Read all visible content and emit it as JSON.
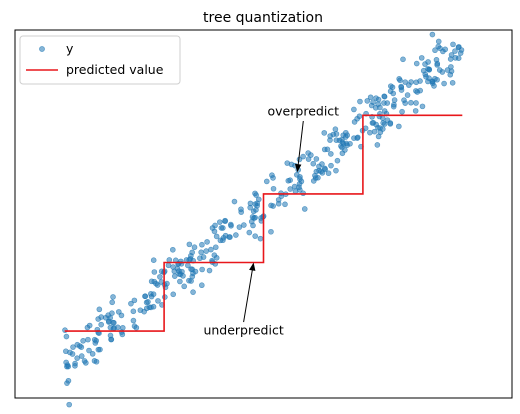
{
  "chart_data": {
    "type": "scatter",
    "title": "tree quantization",
    "xlabel": "",
    "ylabel": "",
    "xlim": [
      -0.25,
      2.25
    ],
    "ylim": [
      -0.2,
      2.0
    ],
    "show_ticks": false,
    "grid": false,
    "legend": {
      "placement": "top-left",
      "entries": [
        "y",
        "predicted value"
      ]
    },
    "colors": {
      "points": "#1f77b4",
      "step": "#e8171b"
    },
    "series": [
      {
        "name": "y",
        "kind": "scatter",
        "noise_sd": 0.075,
        "points_n": 400,
        "x_range": [
          0,
          2
        ],
        "trend": "y ≈ 0.95·x"
      },
      {
        "name": "predicted value",
        "kind": "step",
        "segments": [
          {
            "x0": 0.0,
            "x1": 0.5,
            "y": 0.2
          },
          {
            "x0": 0.5,
            "x1": 1.0,
            "y": 0.61
          },
          {
            "x0": 1.0,
            "x1": 1.5,
            "y": 1.02
          },
          {
            "x0": 1.5,
            "x1": 2.0,
            "y": 1.49
          }
        ]
      }
    ],
    "annotations": [
      {
        "text": "overpredict",
        "xy": [
          1.17,
          1.15
        ],
        "xytext": [
          1.2,
          1.51
        ]
      },
      {
        "text": "underpredict",
        "xy": [
          0.95,
          0.61
        ],
        "xytext": [
          0.9,
          0.2
        ]
      }
    ]
  }
}
